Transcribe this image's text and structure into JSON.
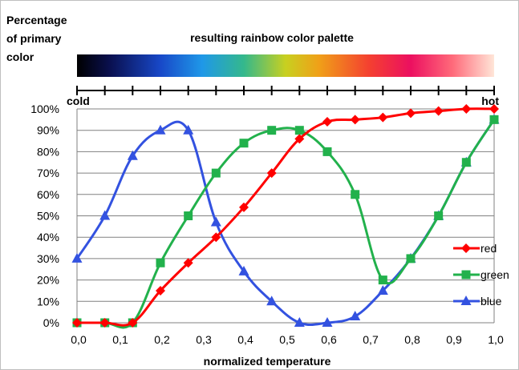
{
  "chart_data": {
    "type": "line",
    "title": "resulting rainbow color palette",
    "ylabel": "Percentage of primary color",
    "ylabel_lines": [
      "Percentage",
      "of primary",
      "color"
    ],
    "xlabel": "normalized temperature",
    "xlim": [
      0,
      1
    ],
    "ylim": [
      0,
      100
    ],
    "x_ticks": [
      "0,0",
      "0,1",
      "0,2",
      "0,3",
      "0,4",
      "0,5",
      "0,6",
      "0,7",
      "0,8",
      "0,9",
      "1,0"
    ],
    "y_ticks": [
      "0%",
      "10%",
      "20%",
      "30%",
      "40%",
      "50%",
      "60%",
      "70%",
      "80%",
      "90%",
      "100%"
    ],
    "annotations": {
      "cold": "cold",
      "hot": "hot"
    },
    "grid": true,
    "legend_position": "right",
    "x": [
      0.0,
      0.0667,
      0.1333,
      0.2,
      0.2667,
      0.3333,
      0.4,
      0.4667,
      0.5333,
      0.6,
      0.6667,
      0.7333,
      0.8,
      0.8667,
      0.9333,
      1.0
    ],
    "series": [
      {
        "name": "red",
        "color": "#ff0000",
        "marker": "diamond",
        "values": [
          0,
          0,
          0,
          15,
          28,
          40,
          54,
          70,
          86,
          94,
          95,
          96,
          98,
          99,
          100,
          100
        ]
      },
      {
        "name": "green",
        "color": "#22b14c",
        "marker": "square",
        "values": [
          0,
          0,
          0,
          28,
          50,
          70,
          84,
          90,
          90,
          80,
          60,
          20,
          30,
          50,
          75,
          95
        ]
      },
      {
        "name": "blue",
        "color": "#3352e0",
        "marker": "triangle",
        "values": [
          30,
          50,
          78,
          90,
          90,
          47,
          24,
          10,
          0,
          0,
          3,
          15,
          30,
          50,
          75,
          95
        ]
      }
    ]
  }
}
